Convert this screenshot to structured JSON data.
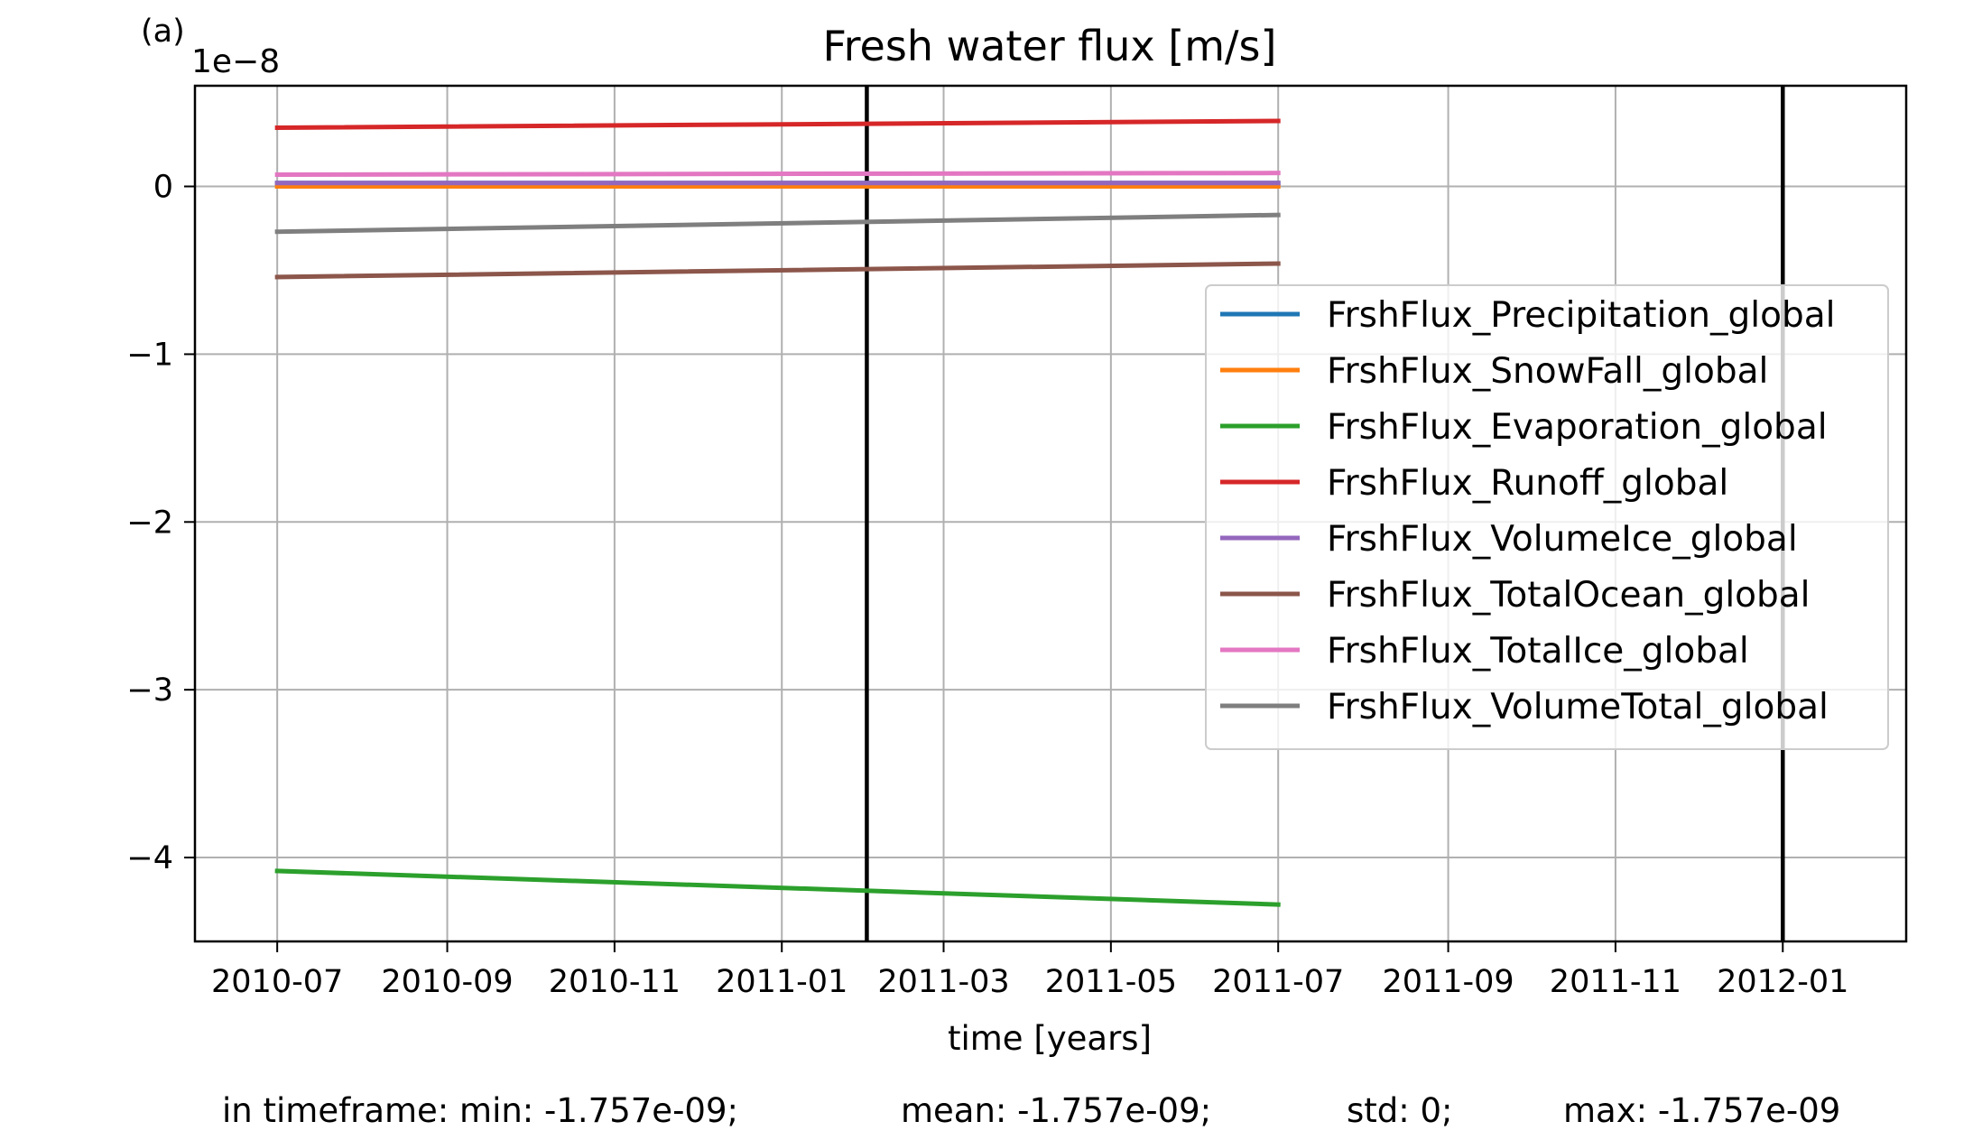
{
  "panel_label": "(a)",
  "chart_data": {
    "type": "line",
    "title": "Fresh water flux [m/s]",
    "xlabel": "time [years]",
    "ylabel": "",
    "y_multiplier": "1e−8",
    "x_range": [
      "2010-06-01",
      "2012-02-15"
    ],
    "y_range": [
      -4.5,
      0.6
    ],
    "y_ticks": [
      0,
      -1,
      -2,
      -3,
      -4
    ],
    "y_tick_labels": [
      "0",
      "−1",
      "−2",
      "−3",
      "−4"
    ],
    "x_ticks": [
      "2010-07-01",
      "2010-09-01",
      "2010-11-01",
      "2011-01-01",
      "2011-03-01",
      "2011-05-01",
      "2011-07-01",
      "2011-09-01",
      "2011-11-01",
      "2012-01-01"
    ],
    "x_tick_labels": [
      "2010-07",
      "2010-09",
      "2010-11",
      "2011-01",
      "2011-03",
      "2011-05",
      "2011-07",
      "2011-09",
      "2011-11",
      "2012-01"
    ],
    "grid": true,
    "legend_position": "center-right",
    "vertical_lines": [
      "2011-02-01",
      "2012-01-01"
    ],
    "series": [
      {
        "name": "FrshFlux_Precipitation_global",
        "color": "#1f77b4",
        "x": [
          "2010-07-01",
          "2011-07-01"
        ],
        "y": [
          0.02,
          0.02
        ]
      },
      {
        "name": "FrshFlux_SnowFall_global",
        "color": "#ff7f0e",
        "x": [
          "2010-07-01",
          "2011-07-01"
        ],
        "y": [
          0.0,
          0.0
        ]
      },
      {
        "name": "FrshFlux_Evaporation_global",
        "color": "#2ca02c",
        "x": [
          "2010-07-01",
          "2011-07-01"
        ],
        "y": [
          -4.08,
          -4.28
        ]
      },
      {
        "name": "FrshFlux_Runoff_global",
        "color": "#d62728",
        "x": [
          "2010-07-01",
          "2011-07-01"
        ],
        "y": [
          0.35,
          0.39
        ]
      },
      {
        "name": "FrshFlux_VolumeIce_global",
        "color": "#9467bd",
        "x": [
          "2010-07-01",
          "2011-07-01"
        ],
        "y": [
          0.02,
          0.02
        ]
      },
      {
        "name": "FrshFlux_TotalOcean_global",
        "color": "#8c564b",
        "x": [
          "2010-07-01",
          "2011-07-01"
        ],
        "y": [
          -0.54,
          -0.46
        ]
      },
      {
        "name": "FrshFlux_TotalIce_global",
        "color": "#e377c2",
        "x": [
          "2010-07-01",
          "2011-07-01"
        ],
        "y": [
          0.07,
          0.08
        ]
      },
      {
        "name": "FrshFlux_VolumeTotal_global",
        "color": "#7f7f7f",
        "x": [
          "2010-07-01",
          "2011-07-01"
        ],
        "y": [
          -0.27,
          -0.17
        ]
      }
    ]
  },
  "stats": {
    "min": "in timeframe: min: -1.757e-09;",
    "mean": "mean: -1.757e-09;",
    "std": "std: 0;",
    "max": "max: -1.757e-09"
  }
}
